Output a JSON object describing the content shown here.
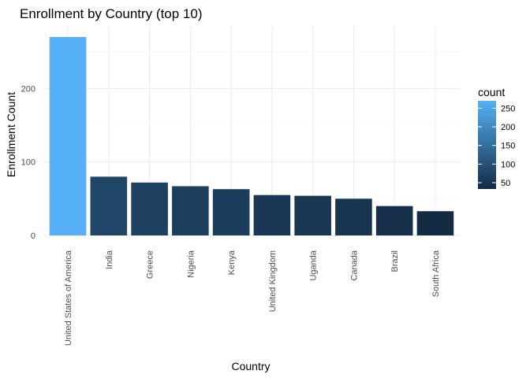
{
  "chart_data": {
    "type": "bar",
    "title": "Enrollment by Country (top 10)",
    "xlabel": "Country",
    "ylabel": "Enrollment Count",
    "categories": [
      "United States of America",
      "India",
      "Greece",
      "Nigeria",
      "Kenya",
      "United Kingdom",
      "Uganda",
      "Canada",
      "Brazil",
      "South Africa"
    ],
    "values": [
      270,
      80,
      72,
      67,
      63,
      55,
      54,
      50,
      40,
      33
    ],
    "ylim": [
      0,
      285
    ],
    "yticks": [
      0,
      100,
      200
    ],
    "grid": true,
    "legend": {
      "title": "count",
      "placement": "right",
      "ticks": [
        50,
        100,
        150,
        200,
        250
      ],
      "range": [
        33,
        270
      ],
      "color_low": "#132b43",
      "color_high": "#56b1f7"
    }
  }
}
